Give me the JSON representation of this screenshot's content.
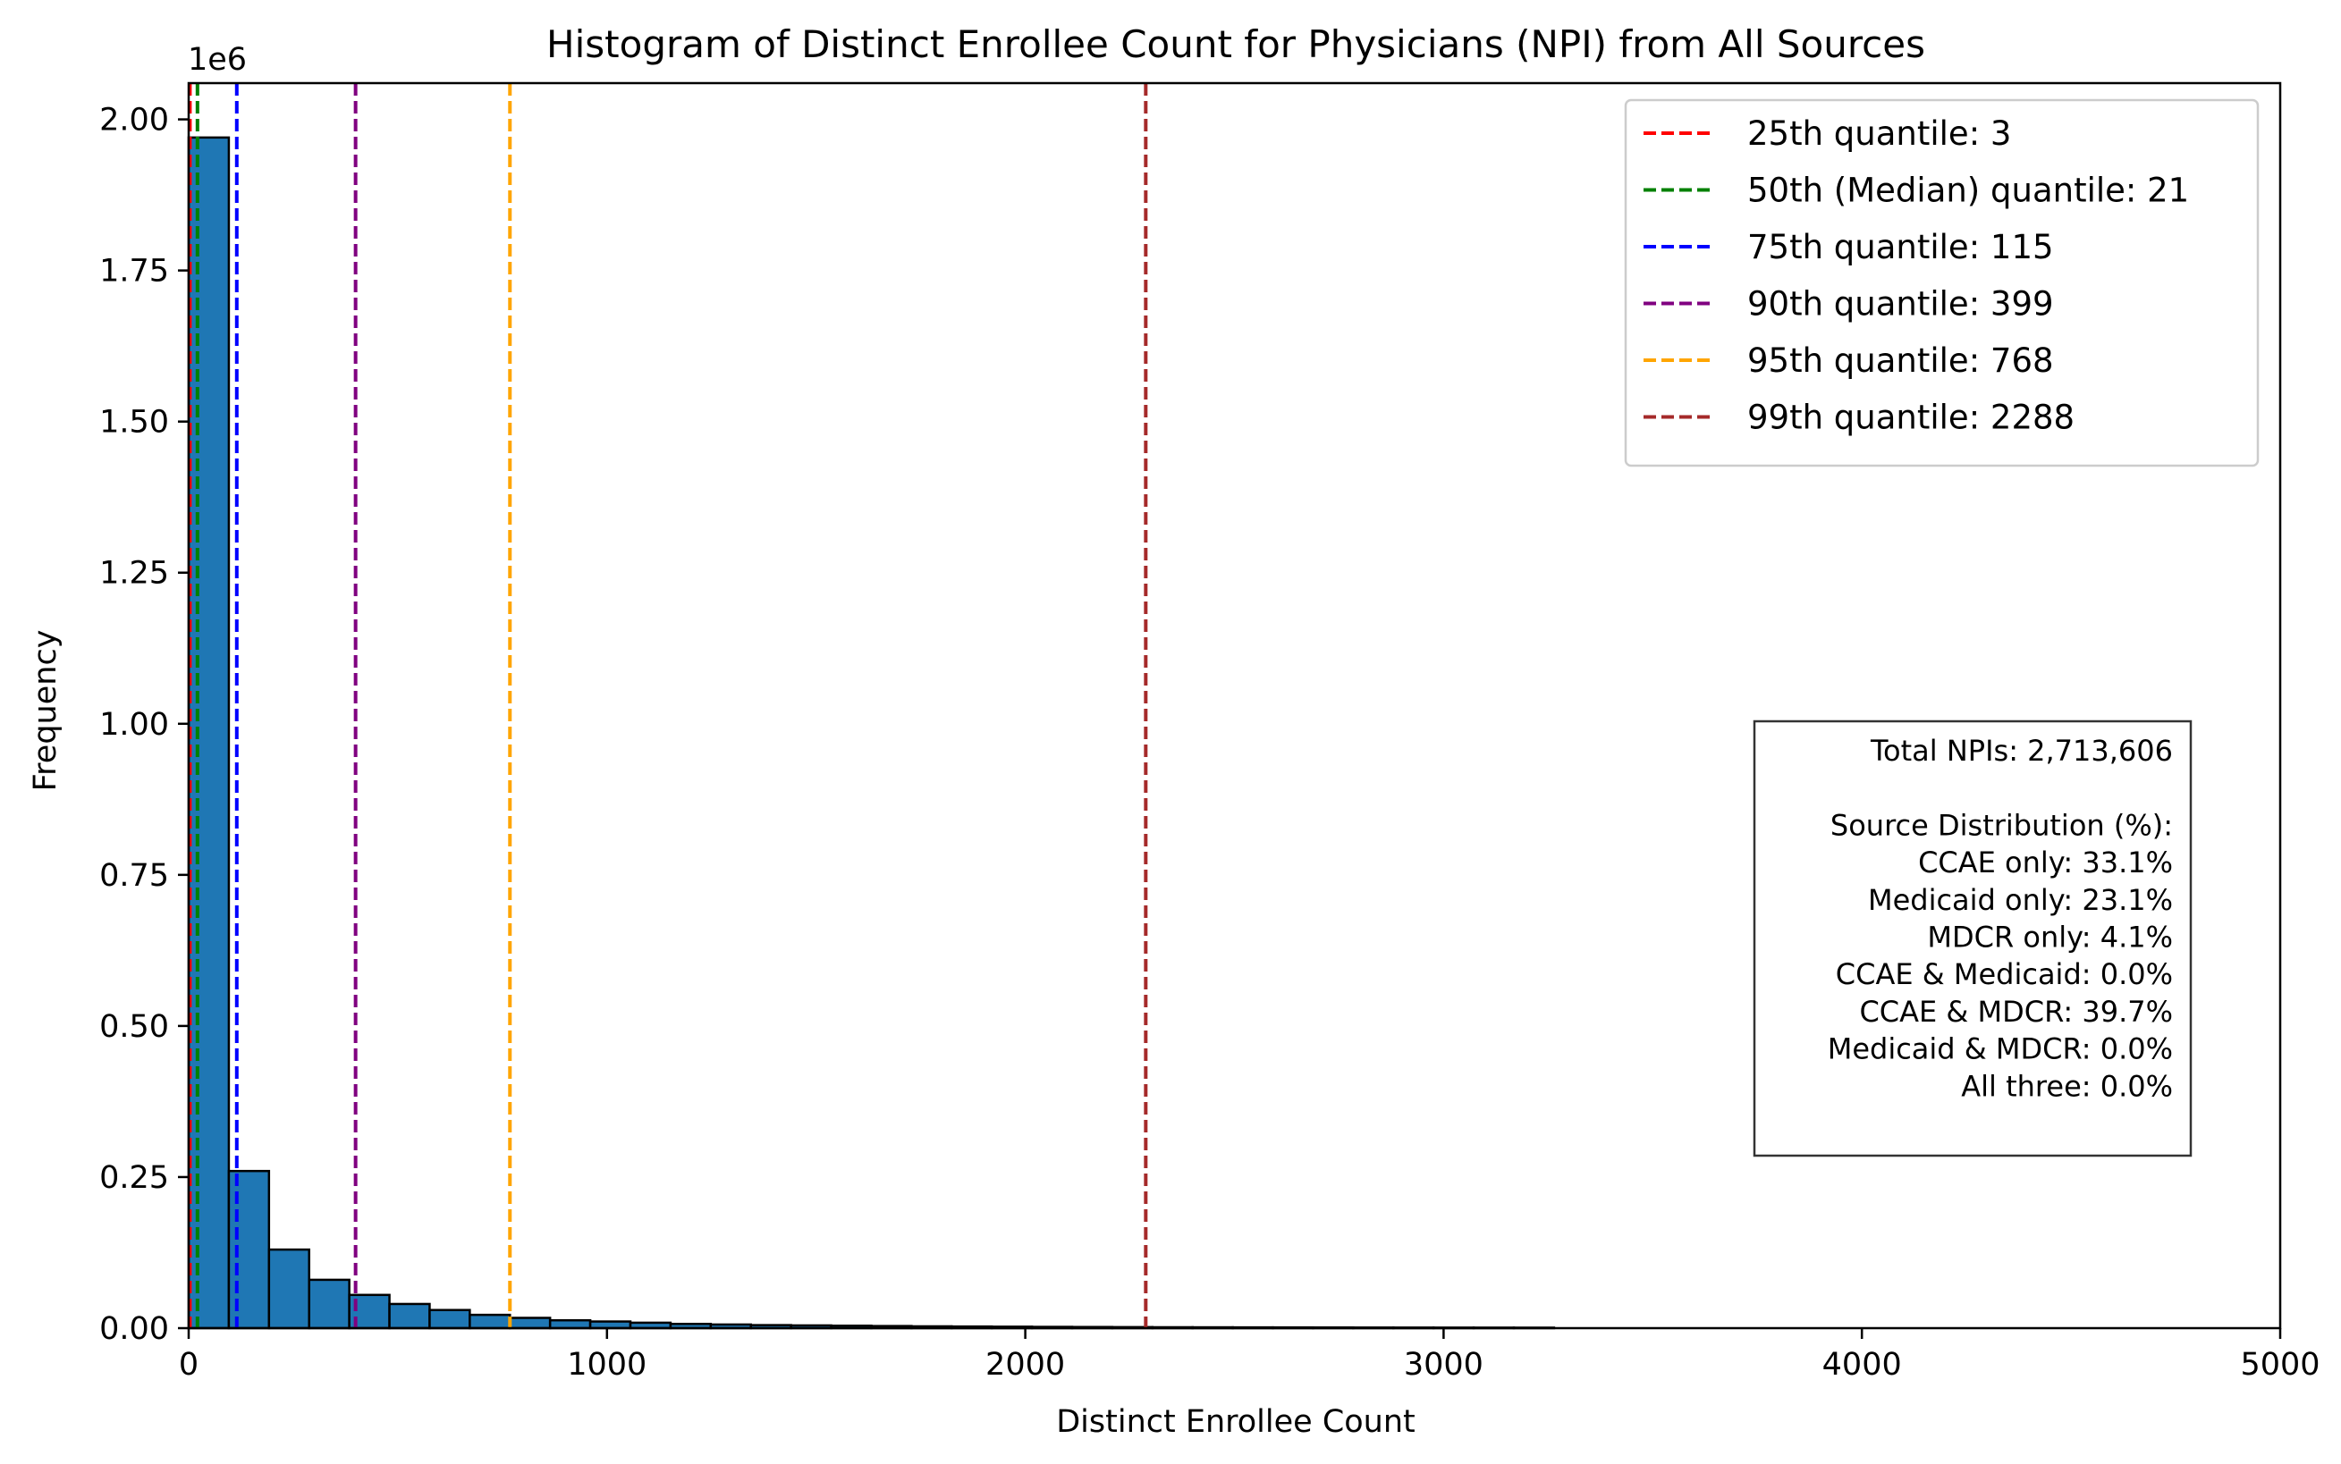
{
  "chart_data": {
    "type": "bar",
    "title": "Histogram of Distinct Enrollee Count for Physicians (NPI) from All Sources",
    "xlabel": "Distinct Enrollee Count",
    "ylabel": "Frequency",
    "y_offset_label": "1e6",
    "xlim": [
      0,
      5000
    ],
    "ylim": [
      0,
      2060000
    ],
    "x_ticks": [
      0,
      1000,
      2000,
      3000,
      4000,
      5000
    ],
    "x_tick_labels": [
      "0",
      "1000",
      "2000",
      "3000",
      "4000",
      "5000"
    ],
    "y_ticks": [
      0,
      250000,
      500000,
      750000,
      1000000,
      1250000,
      1500000,
      1750000,
      2000000
    ],
    "y_tick_labels": [
      "0.00",
      "0.25",
      "0.50",
      "0.75",
      "1.00",
      "1.25",
      "1.50",
      "1.75",
      "2.00"
    ],
    "bar_color": "#1f77b4",
    "bin_width": 96,
    "bin_starts": [
      0,
      96,
      192,
      288,
      384,
      480,
      576,
      672,
      768,
      864,
      960,
      1056,
      1152,
      1248,
      1344,
      1440,
      1536,
      1632,
      1728,
      1824,
      1920,
      2016,
      2112,
      2208,
      2304,
      2400,
      2496,
      2592,
      2688,
      2784,
      2880,
      2976,
      3072,
      3168
    ],
    "values": [
      1970000,
      260000,
      130000,
      80000,
      55000,
      40000,
      30000,
      22000,
      17000,
      13000,
      11000,
      9000,
      7000,
      6000,
      5000,
      4500,
      4000,
      3500,
      3000,
      2700,
      2400,
      2100,
      1900,
      1700,
      1500,
      1400,
      1300,
      1200,
      1100,
      1000,
      950,
      900,
      850,
      800
    ],
    "quantile_lines": [
      {
        "label": "25th quantile: 3",
        "value": 3,
        "color": "#ff0000"
      },
      {
        "label": "50th (Median) quantile: 21",
        "value": 21,
        "color": "#008000"
      },
      {
        "label": "75th quantile: 115",
        "value": 115,
        "color": "#0000ff"
      },
      {
        "label": "90th quantile: 399",
        "value": 399,
        "color": "#800080"
      },
      {
        "label": "95th quantile: 768",
        "value": 768,
        "color": "#ffa500"
      },
      {
        "label": "99th quantile: 2288",
        "value": 2288,
        "color": "#a52a2a"
      }
    ],
    "legend_position": "top-right",
    "info_box": {
      "lines": [
        "Total NPIs: 2,713,606",
        "",
        "Source Distribution (%):",
        "CCAE only: 33.1%",
        "Medicaid only: 23.1%",
        "MDCR only: 4.1%",
        "CCAE & Medicaid: 0.0%",
        "CCAE & MDCR: 39.7%",
        "Medicaid & MDCR: 0.0%",
        "All three: 0.0%"
      ]
    }
  }
}
